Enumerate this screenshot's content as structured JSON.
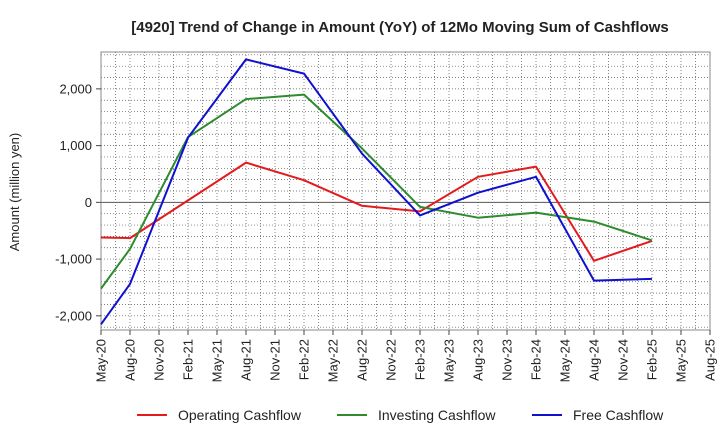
{
  "chart_data": {
    "type": "line",
    "title": "[4920]  Trend of Change in Amount (YoY) of 12Mo Moving Sum of Cashflows",
    "xlabel": "",
    "ylabel": "Amount (million yen)",
    "ylim": [
      -2250,
      2650
    ],
    "yticks": [
      -2000,
      -1000,
      0,
      1000,
      2000
    ],
    "ytick_labels": [
      "-2,000",
      "-1,000",
      "0",
      "1,000",
      "2,000"
    ],
    "categories": [
      "May-20",
      "Aug-20",
      "Nov-20",
      "Feb-21",
      "May-21",
      "Aug-21",
      "Nov-21",
      "Feb-22",
      "May-22",
      "Aug-22",
      "Nov-22",
      "Feb-23",
      "May-23",
      "Aug-23",
      "Nov-23",
      "Feb-24",
      "May-24",
      "Aug-24",
      "Nov-24",
      "Feb-25",
      "May-25",
      "Aug-25"
    ],
    "grid": true,
    "legend_position": "bottom",
    "series": [
      {
        "name": "Operating Cashflow",
        "color": "#e41a1c",
        "values": [
          -620,
          -630,
          null,
          null,
          null,
          700,
          null,
          390,
          null,
          -60,
          null,
          -160,
          null,
          450,
          null,
          630,
          null,
          -1030,
          null,
          -680,
          null,
          null
        ]
      },
      {
        "name": "Investing Cashflow",
        "color": "#2e8b2e",
        "values": [
          -1520,
          -820,
          null,
          1150,
          null,
          1820,
          null,
          1900,
          null,
          950,
          null,
          -80,
          null,
          -270,
          null,
          -180,
          null,
          -340,
          null,
          -670,
          null,
          null
        ]
      },
      {
        "name": "Free Cashflow",
        "color": "#1010d0",
        "values": [
          -2150,
          -1440,
          null,
          1140,
          null,
          2520,
          null,
          2270,
          null,
          860,
          null,
          -230,
          null,
          170,
          null,
          450,
          null,
          -1380,
          null,
          -1350,
          null,
          null
        ]
      }
    ]
  }
}
